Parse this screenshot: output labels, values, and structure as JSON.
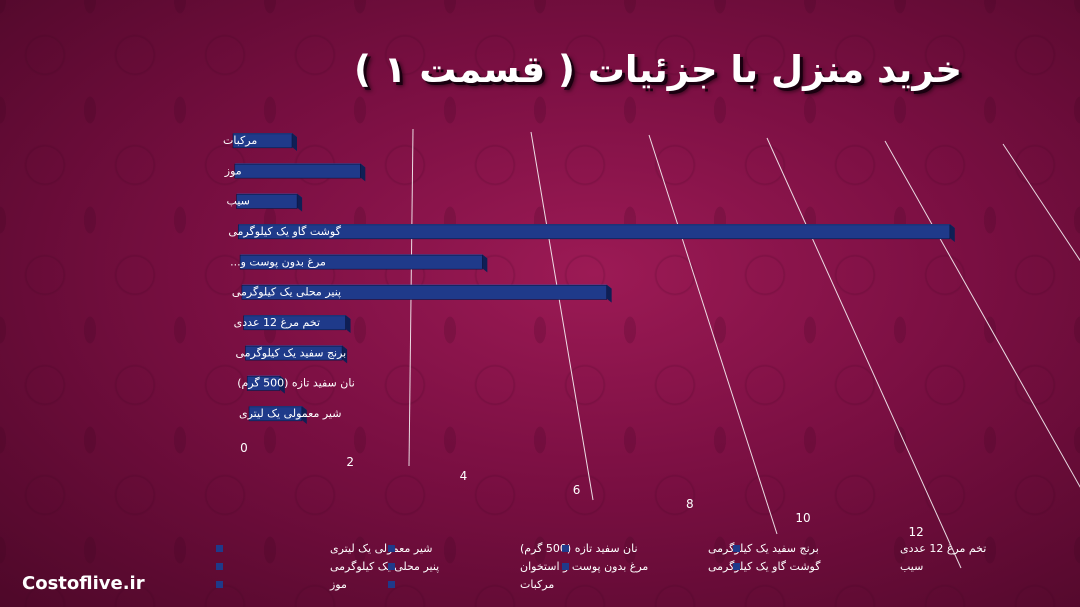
{
  "title": "خرید منزل با جزئیات ( قسمت ۱ )",
  "brand": "Costoflive.ir",
  "colors": {
    "bar": "#1f3a8a",
    "bar_side": "#0f1f55",
    "bar_top": "#3551a8",
    "grid": "#ffffff",
    "text": "#ffffff"
  },
  "chart_data": {
    "type": "bar",
    "orientation": "horizontal",
    "categories": [
      "مرکبات",
      "موز",
      "سیب",
      "گوشت گاو یک کیلوگرمی",
      "مرغ بدون پوست و...",
      "پنیر محلی یک کیلوگرمی",
      "تخم مرغ 12 عددی",
      "برنج سفید یک کیلوگرمی",
      "نان سفید تازه (500 گرم)",
      "شیر معمولی یک لیتری"
    ],
    "values": [
      1.0,
      2.1,
      1.0,
      11.6,
      3.9,
      5.8,
      1.6,
      1.5,
      0.5,
      0.8
    ],
    "x_ticks": [
      "0",
      "2",
      "4",
      "6",
      "8",
      "10",
      "12"
    ],
    "xlim": [
      0,
      12
    ],
    "grid": true,
    "legend_position": "bottom",
    "legend": [
      "شیر معمولی یک لیتری",
      "نان سفید تازه (500 گرم)",
      "برنج سفید یک کیلوگرمی",
      "تخم مرغ 12 عددی",
      "پنیر محلی یک کیلوگرمی",
      "مرغ بدون پوست و استخوان",
      "گوشت گاو یک کیلوگرمی",
      "سیب",
      "موز",
      "مرکبات"
    ]
  }
}
